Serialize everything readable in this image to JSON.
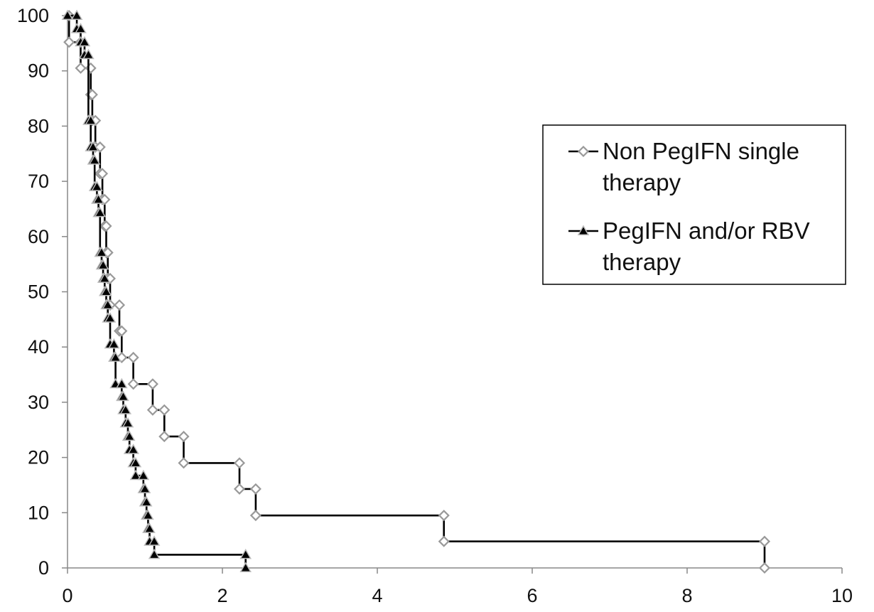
{
  "chart_data": {
    "type": "line",
    "title": "",
    "xlabel": "",
    "ylabel": "",
    "xlim": [
      0,
      10
    ],
    "ylim": [
      0,
      100
    ],
    "x_ticks": [
      "0",
      "2",
      "4",
      "6",
      "8",
      "10"
    ],
    "y_ticks": [
      "0",
      "10",
      "20",
      "30",
      "40",
      "50",
      "60",
      "70",
      "80",
      "90",
      "100"
    ],
    "grid": false,
    "legend_position": "right",
    "step": true,
    "series": [
      {
        "name": "Non PegIFN single therapy",
        "line1": "Non PegIFN single",
        "line2": "therapy",
        "marker": "diamond-open",
        "marker_color": "#999999",
        "line_color": "#000000",
        "points": [
          [
            0.02,
            100
          ],
          [
            0.02,
            95.2
          ],
          [
            0.17,
            95.2
          ],
          [
            0.17,
            90.5
          ],
          [
            0.3,
            90.5
          ],
          [
            0.3,
            85.7
          ],
          [
            0.32,
            85.7
          ],
          [
            0.32,
            81.0
          ],
          [
            0.36,
            81.0
          ],
          [
            0.36,
            76.2
          ],
          [
            0.42,
            76.2
          ],
          [
            0.42,
            71.4
          ],
          [
            0.45,
            71.4
          ],
          [
            0.45,
            66.7
          ],
          [
            0.48,
            66.7
          ],
          [
            0.48,
            61.9
          ],
          [
            0.5,
            61.9
          ],
          [
            0.5,
            57.1
          ],
          [
            0.52,
            57.1
          ],
          [
            0.52,
            52.4
          ],
          [
            0.55,
            52.4
          ],
          [
            0.55,
            47.6
          ],
          [
            0.67,
            47.6
          ],
          [
            0.67,
            42.9
          ],
          [
            0.7,
            42.9
          ],
          [
            0.7,
            38.1
          ],
          [
            0.85,
            38.1
          ],
          [
            0.85,
            33.3
          ],
          [
            1.1,
            33.3
          ],
          [
            1.1,
            28.6
          ],
          [
            1.25,
            28.6
          ],
          [
            1.25,
            23.8
          ],
          [
            1.5,
            23.8
          ],
          [
            1.5,
            19.0
          ],
          [
            2.22,
            19.0
          ],
          [
            2.22,
            14.3
          ],
          [
            2.43,
            14.3
          ],
          [
            2.43,
            9.5
          ],
          [
            4.86,
            9.5
          ],
          [
            4.86,
            4.8
          ],
          [
            9.0,
            4.8
          ],
          [
            9.0,
            0
          ]
        ]
      },
      {
        "name": "PegIFN and/or RBV therapy",
        "line1": "PegIFN and/or RBV",
        "line2": "therapy",
        "marker": "triangle-filled",
        "marker_color": "#000000",
        "line_color": "#000000",
        "points": [
          [
            0.0,
            100
          ],
          [
            0.12,
            100
          ],
          [
            0.12,
            97.6
          ],
          [
            0.17,
            97.6
          ],
          [
            0.17,
            95.2
          ],
          [
            0.22,
            95.2
          ],
          [
            0.22,
            92.9
          ],
          [
            0.27,
            92.9
          ],
          [
            0.27,
            81.0
          ],
          [
            0.3,
            81.0
          ],
          [
            0.3,
            76.2
          ],
          [
            0.33,
            76.2
          ],
          [
            0.33,
            73.8
          ],
          [
            0.35,
            73.8
          ],
          [
            0.35,
            69.0
          ],
          [
            0.38,
            69.0
          ],
          [
            0.38,
            66.7
          ],
          [
            0.4,
            66.7
          ],
          [
            0.4,
            64.3
          ],
          [
            0.42,
            64.3
          ],
          [
            0.42,
            57.1
          ],
          [
            0.44,
            57.1
          ],
          [
            0.44,
            54.8
          ],
          [
            0.46,
            54.8
          ],
          [
            0.46,
            52.4
          ],
          [
            0.48,
            52.4
          ],
          [
            0.48,
            50.0
          ],
          [
            0.5,
            50.0
          ],
          [
            0.5,
            47.6
          ],
          [
            0.52,
            47.6
          ],
          [
            0.52,
            45.2
          ],
          [
            0.55,
            45.2
          ],
          [
            0.55,
            40.5
          ],
          [
            0.6,
            40.5
          ],
          [
            0.6,
            38.1
          ],
          [
            0.62,
            38.1
          ],
          [
            0.62,
            33.3
          ],
          [
            0.7,
            33.3
          ],
          [
            0.7,
            31.0
          ],
          [
            0.72,
            31.0
          ],
          [
            0.72,
            28.6
          ],
          [
            0.75,
            28.6
          ],
          [
            0.75,
            26.2
          ],
          [
            0.78,
            26.2
          ],
          [
            0.78,
            23.8
          ],
          [
            0.8,
            23.8
          ],
          [
            0.8,
            21.4
          ],
          [
            0.85,
            21.4
          ],
          [
            0.85,
            19.0
          ],
          [
            0.88,
            19.0
          ],
          [
            0.88,
            16.7
          ],
          [
            0.98,
            16.7
          ],
          [
            0.98,
            14.3
          ],
          [
            1.0,
            14.3
          ],
          [
            1.0,
            11.9
          ],
          [
            1.02,
            11.9
          ],
          [
            1.02,
            9.5
          ],
          [
            1.04,
            9.5
          ],
          [
            1.04,
            7.1
          ],
          [
            1.06,
            7.1
          ],
          [
            1.06,
            4.8
          ],
          [
            1.12,
            4.8
          ],
          [
            1.12,
            2.4
          ],
          [
            2.3,
            2.4
          ],
          [
            2.3,
            0
          ]
        ]
      }
    ]
  }
}
